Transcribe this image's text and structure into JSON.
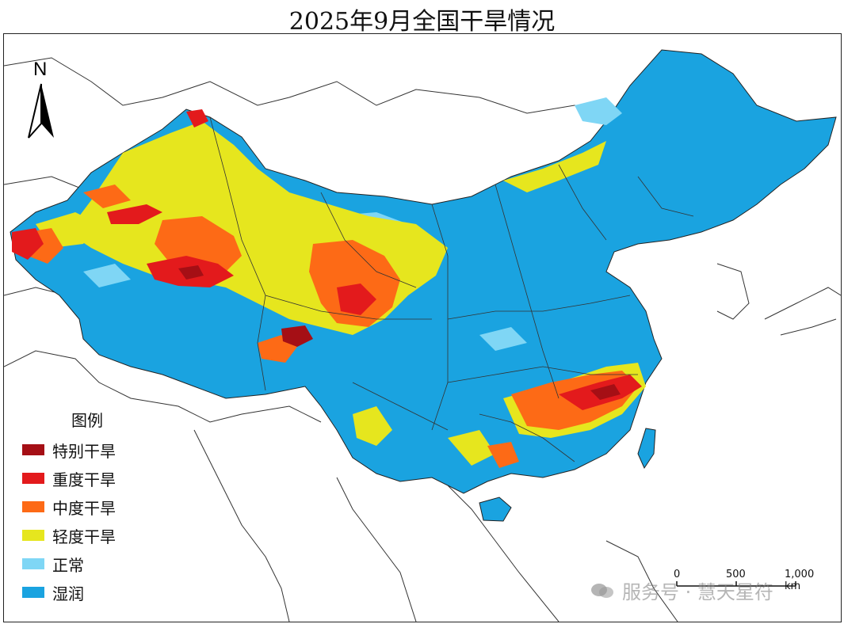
{
  "title": "2025年9月全国干旱情况",
  "north_arrow": "N",
  "legend": {
    "title": "图例",
    "items": [
      {
        "label": "特别干旱",
        "color": "#a50f15"
      },
      {
        "label": "重度干旱",
        "color": "#e31a1c"
      },
      {
        "label": "中度干旱",
        "color": "#fd6a16"
      },
      {
        "label": "轻度干旱",
        "color": "#e6e61e"
      },
      {
        "label": "正常",
        "color": "#7fd6f5"
      },
      {
        "label": "湿润",
        "color": "#1aa3e0"
      }
    ]
  },
  "scale": {
    "labels": [
      "0",
      "500",
      "1,000 km"
    ]
  },
  "watermark": "服务号 · 慧天星符",
  "colors": {
    "wet": "#1aa3e0",
    "normal": "#7fd6f5",
    "light": "#e6e61e",
    "moderate": "#fd6a16",
    "severe": "#e31a1c",
    "extreme": "#a50f15"
  }
}
